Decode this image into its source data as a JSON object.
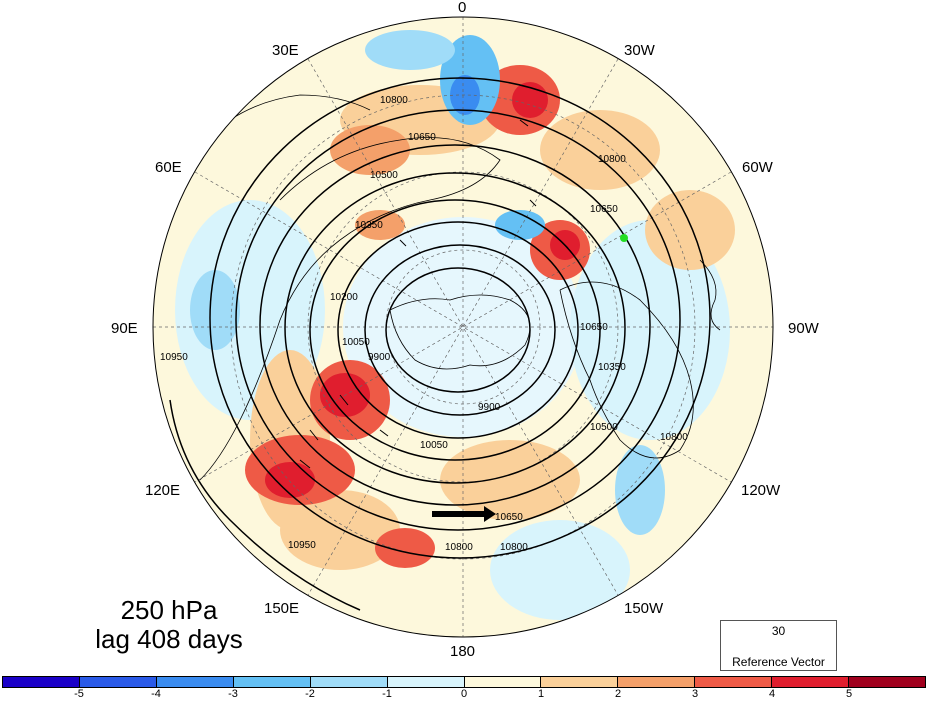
{
  "title": {
    "line1": "250 hPa",
    "line2": "lag 408 days"
  },
  "longitude_labels": {
    "lon_0": "0",
    "lon_30w": "30W",
    "lon_60w": "60W",
    "lon_90w": "90W",
    "lon_120w": "120W",
    "lon_150w": "150W",
    "lon_180": "180",
    "lon_150e": "150E",
    "lon_120e": "120E",
    "lon_90e": "90E",
    "lon_60e": "60E",
    "lon_30e": "30E"
  },
  "contours": {
    "interval_labels": [
      "10800",
      "10650",
      "10500",
      "10350",
      "10200",
      "10050",
      "9900",
      "10950"
    ]
  },
  "reference_vector": {
    "magnitude": "30",
    "label": "Reference Vector"
  },
  "colorbar": {
    "colors": [
      "#1a00c8",
      "#2a5ae8",
      "#3a8cf0",
      "#64c0f4",
      "#a0dcf8",
      "#d8f4fc",
      "#fdf8dc",
      "#fad09a",
      "#f4a06a",
      "#ee5a46",
      "#e01e2e",
      "#a0001e"
    ],
    "tick_labels": [
      "-5",
      "-4",
      "-3",
      "-2",
      "-1",
      "0",
      "1",
      "2",
      "3",
      "4",
      "5"
    ]
  },
  "marker_color": "#22dd22"
}
